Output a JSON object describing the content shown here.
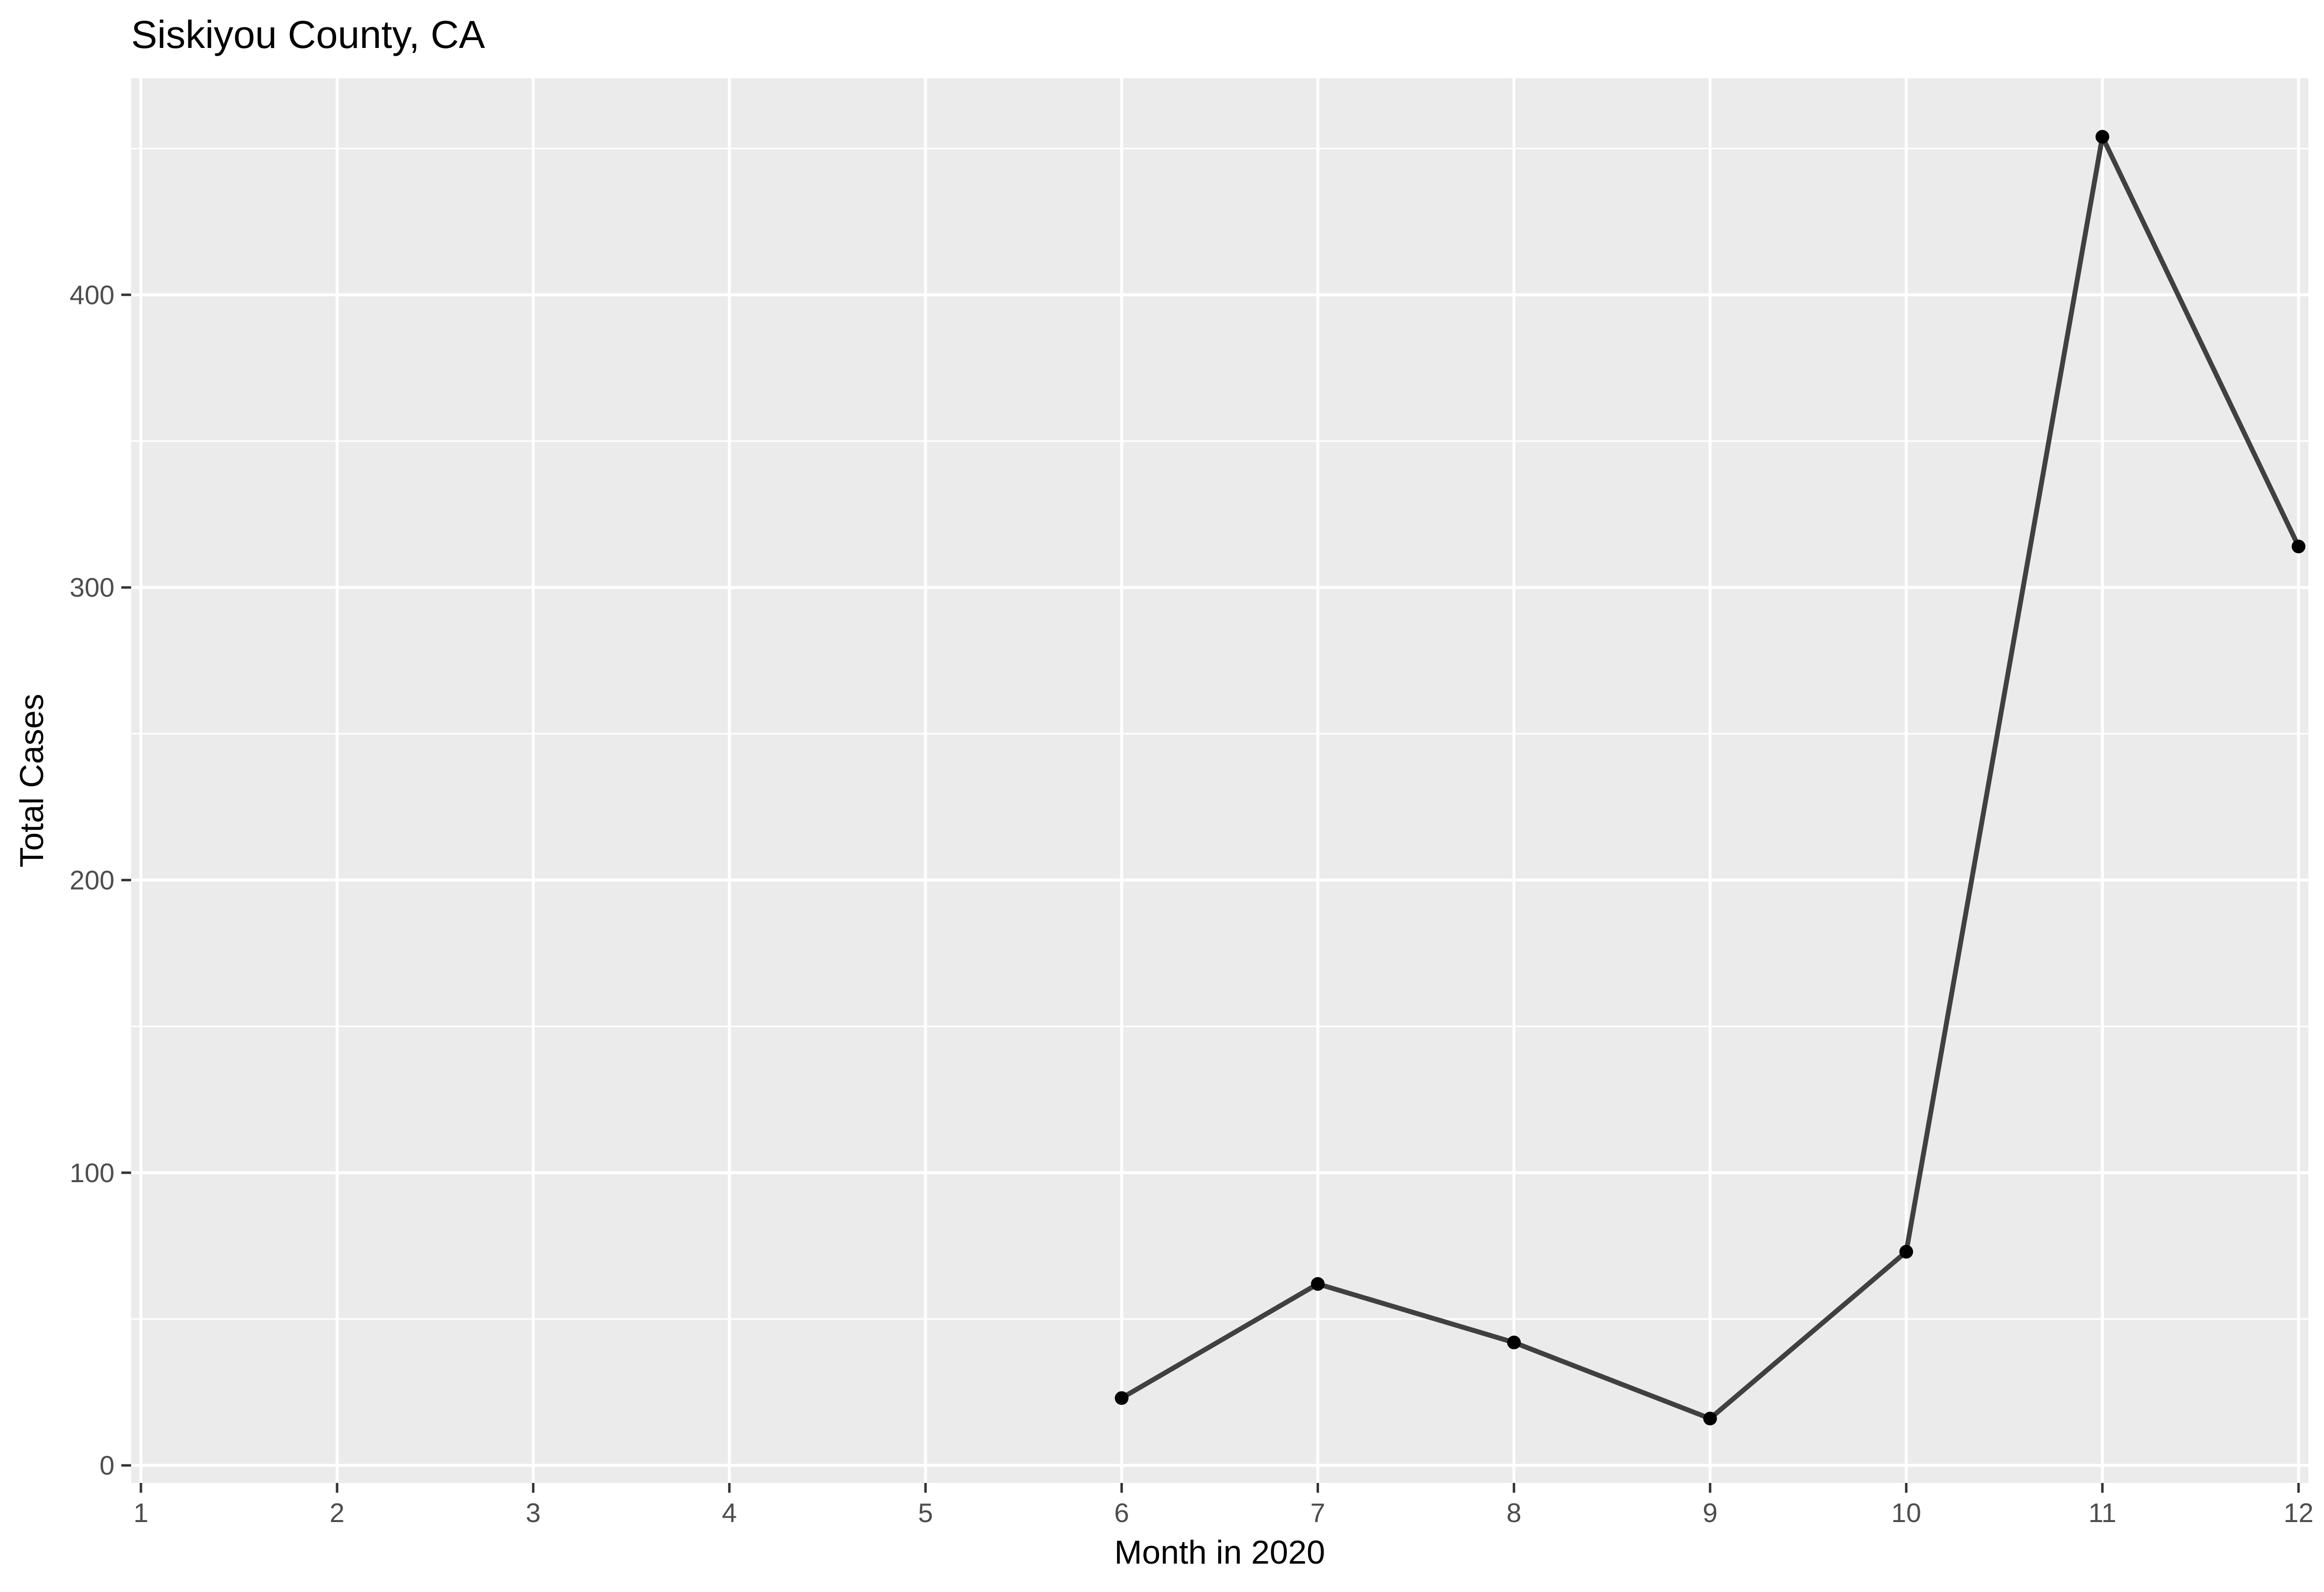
{
  "chart_data": {
    "type": "line",
    "title": "Siskiyou County, CA",
    "xlabel": "Month in 2020",
    "ylabel": "Total Cases",
    "x": [
      6,
      7,
      8,
      9,
      10,
      11,
      12
    ],
    "series": [
      {
        "values": [
          23,
          62,
          42,
          16,
          73,
          454,
          314
        ],
        "color": "#404040",
        "marker_color": "#000000"
      }
    ],
    "x_ticks": [
      1,
      2,
      3,
      4,
      5,
      6,
      7,
      8,
      9,
      10,
      11,
      12
    ],
    "y_ticks": [
      0,
      100,
      200,
      300,
      400
    ],
    "xlim": [
      0.95,
      12.05
    ],
    "ylim": [
      -6,
      474
    ],
    "grid": true,
    "legend": "none",
    "panel_background": "#ebebeb",
    "grid_color": "#ffffff"
  }
}
